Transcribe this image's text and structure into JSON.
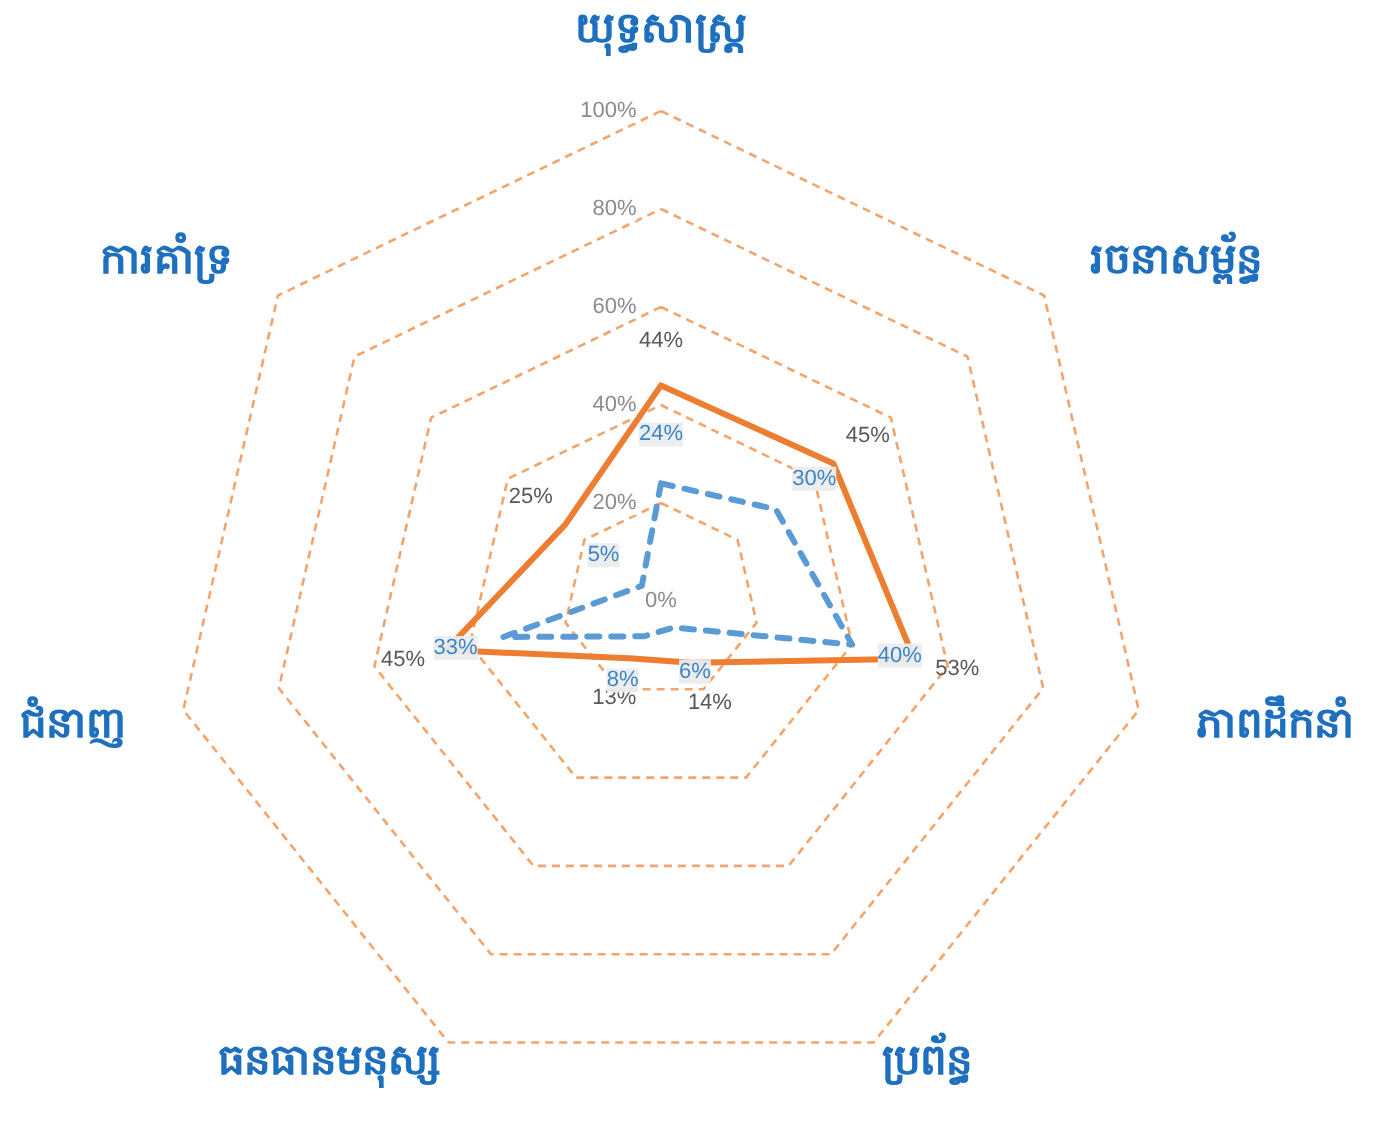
{
  "chart_data": {
    "type": "radar",
    "categories": [
      "យុទ្ធសាស្ត្រ",
      "រចនាសម្ព័ន្ធ",
      "ភាពដឹកនាំ",
      "ប្រព័ន្ធ",
      "ធនធានមនុស្ស",
      "ជំនាញ",
      "ការគាំទ្រ"
    ],
    "series": [
      {
        "color": "#ed7d31",
        "line_style": "solid",
        "values": [
          44,
          45,
          53,
          14,
          13,
          45,
          25
        ],
        "value_labels": [
          "44%",
          "45%",
          "53%",
          "14%",
          "13%",
          "45%",
          "25%"
        ]
      },
      {
        "color": "#5b9bd5",
        "line_style": "dashed",
        "values": [
          24,
          30,
          40,
          6,
          8,
          33,
          5
        ],
        "value_labels": [
          "24%",
          "30%",
          "40%",
          "6%",
          "8%",
          "33%",
          "5%"
        ]
      }
    ],
    "ylim": [
      0,
      100
    ],
    "yticks": [
      {
        "value": 0,
        "label": "0%"
      },
      {
        "value": 20,
        "label": "20%"
      },
      {
        "value": 40,
        "label": "40%"
      },
      {
        "value": 60,
        "label": "60%"
      },
      {
        "value": 80,
        "label": "80%"
      },
      {
        "value": 100,
        "label": "100%"
      }
    ],
    "grid": true,
    "marker": "none"
  }
}
